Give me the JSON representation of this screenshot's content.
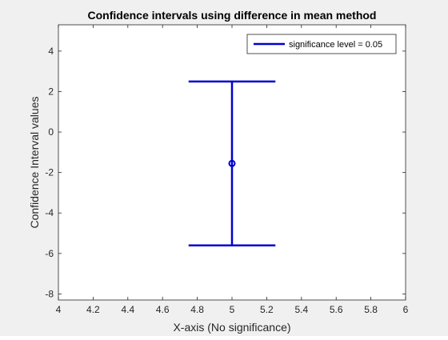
{
  "chart_data": {
    "type": "errorbar",
    "title": "Confidence intervals using difference in mean method",
    "xlabel": "X-axis (No significance)",
    "ylabel": "Confidence Interval values",
    "xlim": [
      4,
      6
    ],
    "ylim": [
      -8.3,
      5.3
    ],
    "xticks": [
      4,
      4.2,
      4.4,
      4.6,
      4.8,
      5,
      5.2,
      5.4,
      5.6,
      5.8,
      6
    ],
    "xtick_labels": [
      "4",
      "4.2",
      "4.4",
      "4.6",
      "4.8",
      "5",
      "5.2",
      "5.4",
      "5.6",
      "5.8",
      "6"
    ],
    "yticks": [
      -8,
      -6,
      -4,
      -2,
      0,
      2,
      4
    ],
    "ytick_labels": [
      "-8",
      "-6",
      "-4",
      "-2",
      "0",
      "2",
      "4"
    ],
    "grid": false,
    "legend_position": "top-right",
    "series": [
      {
        "name": "significance level = 0.05",
        "color": "#0000cc",
        "points": [
          {
            "x": 5,
            "y": -1.55,
            "lower": -5.6,
            "upper": 2.5,
            "cap_halfwidth": 0.25
          }
        ]
      }
    ]
  }
}
